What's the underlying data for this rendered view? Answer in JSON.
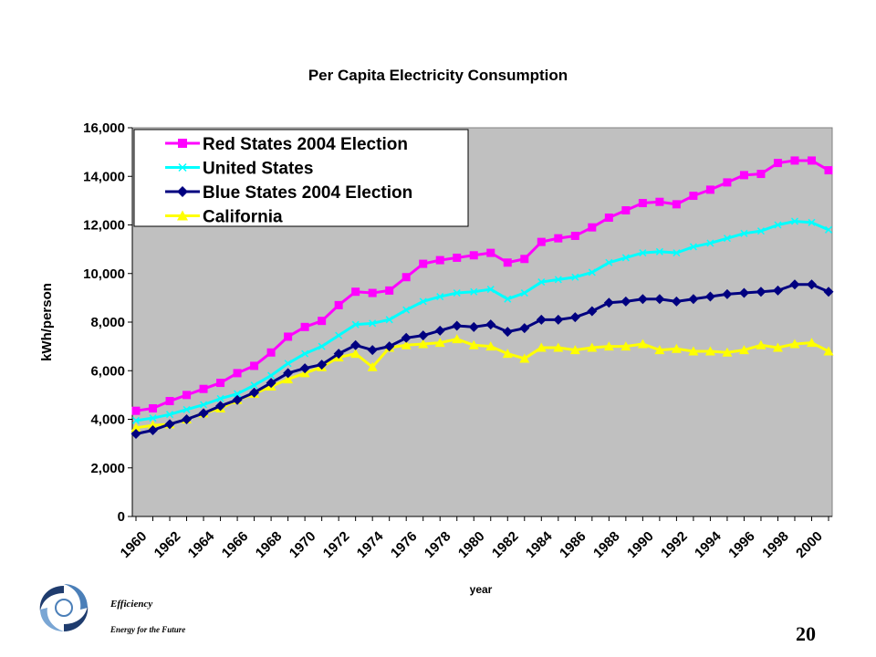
{
  "chart_data": {
    "type": "line",
    "title": "Per Capita Electricity Consumption",
    "xlabel": "year",
    "ylabel": "kWh/person",
    "ylim": [
      0,
      16000
    ],
    "yticks": [
      0,
      2000,
      4000,
      6000,
      8000,
      10000,
      12000,
      14000,
      16000
    ],
    "ytick_labels": [
      "0",
      "2,000",
      "4,000",
      "6,000",
      "8,000",
      "10,000",
      "12,000",
      "14,000",
      "16,000"
    ],
    "x": [
      1960,
      1961,
      1962,
      1963,
      1964,
      1965,
      1966,
      1967,
      1968,
      1969,
      1970,
      1971,
      1972,
      1973,
      1974,
      1975,
      1976,
      1977,
      1978,
      1979,
      1980,
      1981,
      1982,
      1983,
      1984,
      1985,
      1986,
      1987,
      1988,
      1989,
      1990,
      1991,
      1992,
      1993,
      1994,
      1995,
      1996,
      1997,
      1998,
      1999,
      2000,
      2001
    ],
    "xtick_labels": [
      "1960",
      "1962",
      "1964",
      "1966",
      "1968",
      "1970",
      "1972",
      "1974",
      "1976",
      "1978",
      "1980",
      "1982",
      "1984",
      "1986",
      "1988",
      "1990",
      "1992",
      "1994",
      "1996",
      "1998",
      "2000"
    ],
    "grid": false,
    "background": "#c0c0c0",
    "legend_position": "top-left",
    "series": [
      {
        "name": "Red States 2004 Election",
        "color": "#ff00ff",
        "marker": "square",
        "values": [
          4350,
          4450,
          4750,
          5000,
          5250,
          5500,
          5900,
          6200,
          6750,
          7400,
          7800,
          8050,
          8700,
          9250,
          9200,
          9300,
          9850,
          10400,
          10550,
          10650,
          10750,
          10850,
          10450,
          10600,
          11300,
          11450,
          11550,
          11900,
          12300,
          12600,
          12900,
          12950,
          12850,
          13200,
          13450,
          13750,
          14050,
          14100,
          14550,
          14650,
          14650,
          14250
        ]
      },
      {
        "name": "United States",
        "color": "#00ffff",
        "marker": "x",
        "values": [
          3950,
          4050,
          4200,
          4400,
          4600,
          4850,
          5050,
          5400,
          5800,
          6300,
          6700,
          7000,
          7450,
          7900,
          7950,
          8100,
          8500,
          8850,
          9050,
          9200,
          9250,
          9350,
          8950,
          9200,
          9650,
          9750,
          9850,
          10050,
          10450,
          10650,
          10850,
          10900,
          10850,
          11100,
          11250,
          11450,
          11650,
          11750,
          12000,
          12150,
          12100,
          11800
        ]
      },
      {
        "name": "Blue States 2004 Election",
        "color": "#000080",
        "marker": "diamond",
        "values": [
          3400,
          3550,
          3800,
          4000,
          4250,
          4550,
          4800,
          5100,
          5500,
          5900,
          6100,
          6250,
          6700,
          7050,
          6850,
          7000,
          7350,
          7450,
          7650,
          7850,
          7800,
          7900,
          7600,
          7750,
          8100,
          8100,
          8200,
          8450,
          8800,
          8850,
          8950,
          8950,
          8850,
          8950,
          9050,
          9150,
          9200,
          9250,
          9300,
          9550,
          9550,
          9250
        ]
      },
      {
        "name": "California",
        "color": "#ffff00",
        "marker": "triangle",
        "values": [
          3650,
          3750,
          3800,
          4000,
          4250,
          4450,
          4800,
          5050,
          5350,
          5650,
          5900,
          6150,
          6550,
          6700,
          6150,
          6950,
          7050,
          7100,
          7150,
          7300,
          7050,
          7000,
          6700,
          6500,
          6950,
          6950,
          6850,
          6950,
          7000,
          7000,
          7100,
          6850,
          6900,
          6800,
          6800,
          6750,
          6850,
          7050,
          6950,
          7100,
          7150,
          6800
        ]
      }
    ]
  },
  "footer": {
    "line1": "Efficiency",
    "line2": "Energy for the Future",
    "page_number": "20"
  }
}
